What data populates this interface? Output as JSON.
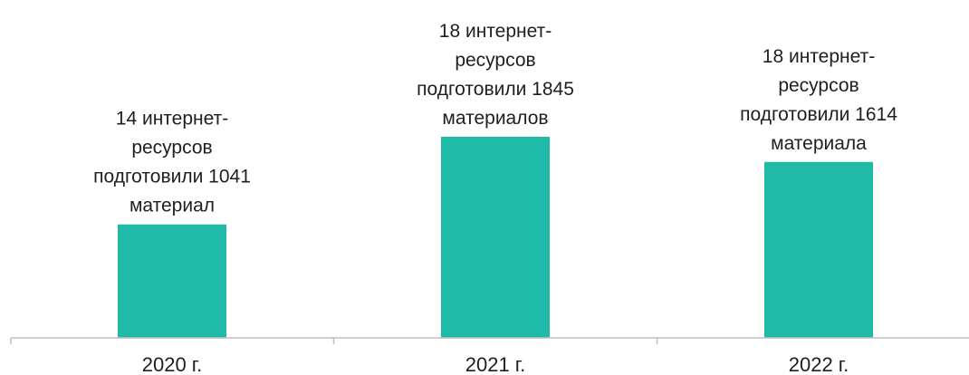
{
  "chart_data": {
    "type": "bar",
    "categories": [
      "2020 г.",
      "2021 г.",
      "2022 г."
    ],
    "values": [
      1041,
      1845,
      1614
    ],
    "data_labels": [
      [
        "14 интернет-",
        "ресурсов",
        "подготовили 1041",
        "материал"
      ],
      [
        "18 интернет-",
        "ресурсов",
        "подготовили 1845",
        "материалов"
      ],
      [
        "18 интернет-",
        "ресурсов",
        "подготовили 1614",
        "материала"
      ]
    ],
    "bar_color": "#20BAA8",
    "axis_color": "#BFBFBF",
    "grid": false,
    "legend": "none"
  }
}
